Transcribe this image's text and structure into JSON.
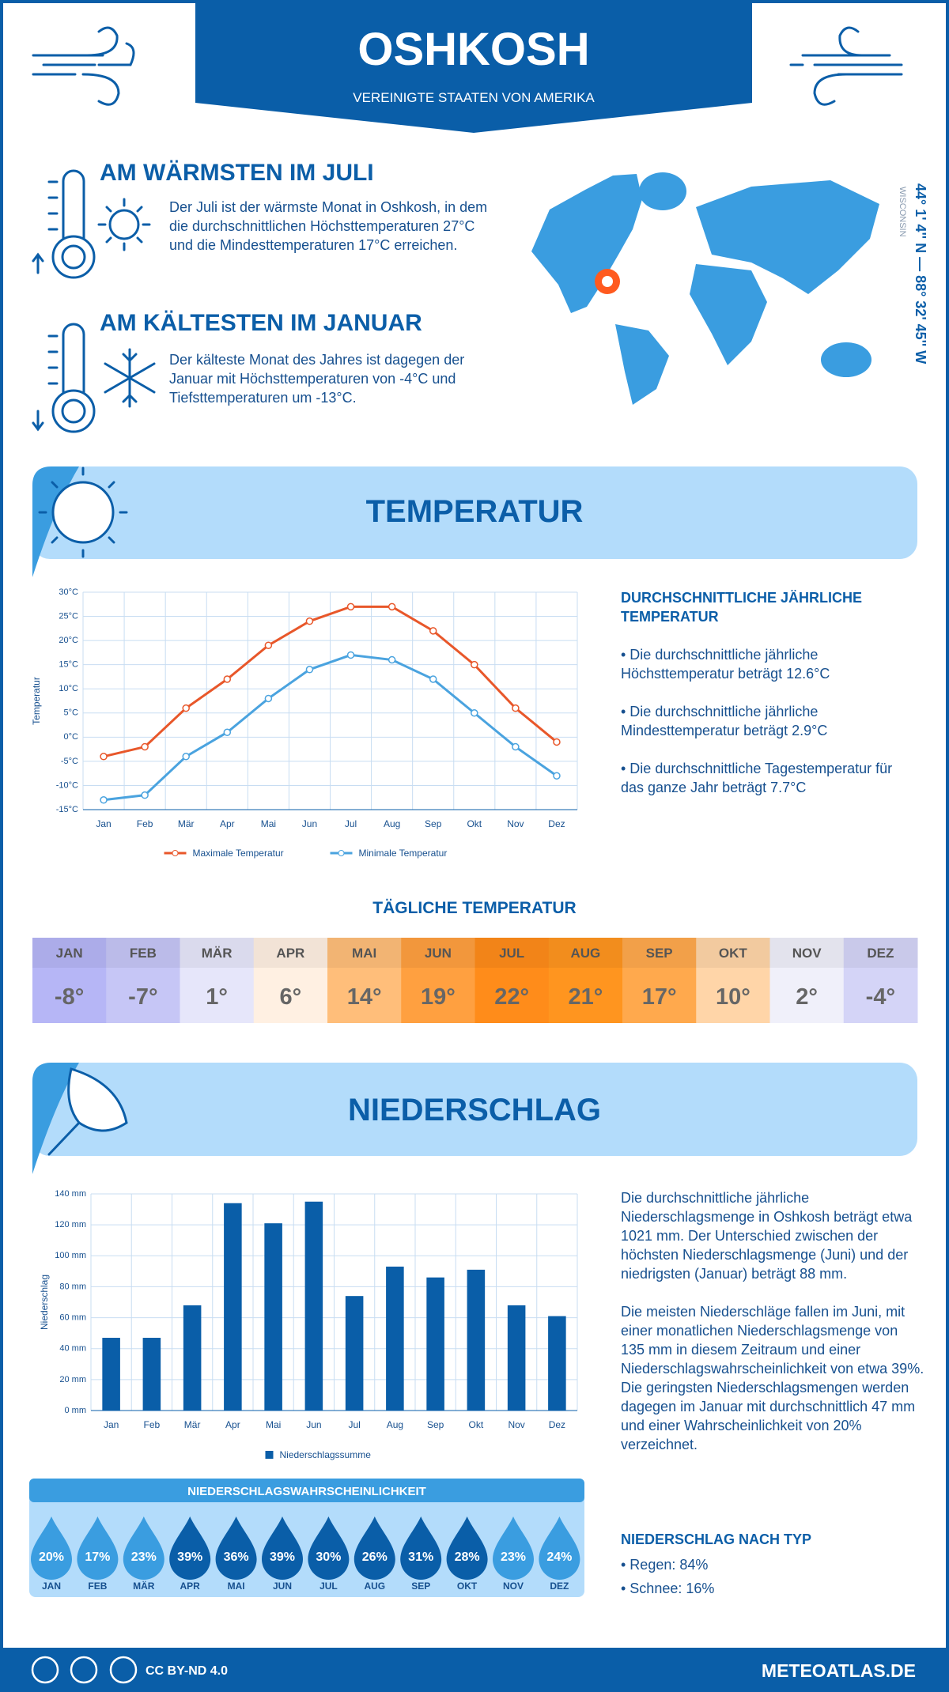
{
  "header": {
    "title": "OSHKOSH",
    "subtitle": "VEREINIGTE STAATEN VON AMERIKA"
  },
  "warmest": {
    "title": "AM WÄRMSTEN IM JULI",
    "text": "Der Juli ist der wärmste Monat in Oshkosh, in dem die durchschnittlichen Höchsttemperaturen 27°C und die Mindesttemperaturen 17°C erreichen."
  },
  "coldest": {
    "title": "AM KÄLTESTEN IM JANUAR",
    "text": "Der kälteste Monat des Jahres ist dagegen der Januar mit Höchsttemperaturen von -4°C und Tiefsttemperaturen um -13°C."
  },
  "location": {
    "coordinates": "44° 1' 4'' N — 88° 32' 45'' W",
    "region": "WISCONSIN"
  },
  "temperature_section": {
    "title": "TEMPERATUR",
    "annual_title": "DURCHSCHNITTLICHE JÄHRLICHE TEMPERATUR",
    "annual_items": [
      "• Die durchschnittliche jährliche Höchsttemperatur beträgt 12.6°C",
      "• Die durchschnittliche jährliche Mindesttemperatur beträgt 2.9°C",
      "• Die durchschnittliche Tagestemperatur für das ganze Jahr beträgt 7.7°C"
    ]
  },
  "daily_temperature": {
    "title": "TÄGLICHE TEMPERATUR",
    "months": [
      "JAN",
      "FEB",
      "MÄR",
      "APR",
      "MAI",
      "JUN",
      "JUL",
      "AUG",
      "SEP",
      "OKT",
      "NOV",
      "DEZ"
    ],
    "values": [
      "-8°",
      "-7°",
      "1°",
      "6°",
      "14°",
      "19°",
      "22°",
      "21°",
      "17°",
      "10°",
      "2°",
      "-4°"
    ],
    "colors": [
      "#b6b6f6",
      "#c6c6f6",
      "#e6e6fa",
      "#fff0e2",
      "#ffbe7a",
      "#ffa040",
      "#ff8c1a",
      "#ff951f",
      "#ffa94d",
      "#ffd5a8",
      "#f0f0fa",
      "#d4d4f7"
    ]
  },
  "chart_data": [
    {
      "type": "line",
      "y_label": "Temperatur",
      "categories": [
        "Jan",
        "Feb",
        "Mär",
        "Apr",
        "Mai",
        "Jun",
        "Jul",
        "Aug",
        "Sep",
        "Okt",
        "Nov",
        "Dez"
      ],
      "series": [
        {
          "name": "Maximale Temperatur",
          "color": "#e8572a",
          "values": [
            -4,
            -2,
            6,
            12,
            19,
            24,
            27,
            27,
            22,
            15,
            6,
            -1
          ]
        },
        {
          "name": "Minimale Temperatur",
          "color": "#4aa3df",
          "values": [
            -13,
            -12,
            -4,
            1,
            8,
            14,
            17,
            16,
            12,
            5,
            -2,
            -8
          ]
        }
      ],
      "ylim": [
        -15,
        30
      ],
      "yticks": [
        {
          "value": -15,
          "label": "-15°C"
        },
        {
          "value": -10,
          "label": "-10°C"
        },
        {
          "value": -5,
          "label": "-5°C"
        },
        {
          "value": 0,
          "label": "0°C"
        },
        {
          "value": 5,
          "label": "5°C"
        },
        {
          "value": 10,
          "label": "10°C"
        },
        {
          "value": 15,
          "label": "15°C"
        },
        {
          "value": 20,
          "label": "20°C"
        },
        {
          "value": 25,
          "label": "25°C"
        },
        {
          "value": 30,
          "label": "30°C"
        }
      ],
      "grid": true,
      "legend": "bottom"
    },
    {
      "type": "bar",
      "y_label": "Niederschlag",
      "categories": [
        "Jan",
        "Feb",
        "Mär",
        "Apr",
        "Mai",
        "Jun",
        "Jul",
        "Aug",
        "Sep",
        "Okt",
        "Nov",
        "Dez"
      ],
      "series": [
        {
          "name": "Niederschlagssumme",
          "color": "#0a5ea8",
          "values": [
            47,
            47,
            68,
            134,
            121,
            135,
            74,
            93,
            86,
            91,
            68,
            61
          ]
        }
      ],
      "ylim": [
        0,
        140
      ],
      "yticks": [
        {
          "value": 0,
          "label": "0 mm"
        },
        {
          "value": 20,
          "label": "20 mm"
        },
        {
          "value": 40,
          "label": "40 mm"
        },
        {
          "value": 60,
          "label": "60 mm"
        },
        {
          "value": 80,
          "label": "80 mm"
        },
        {
          "value": 100,
          "label": "100 mm"
        },
        {
          "value": 120,
          "label": "120 mm"
        },
        {
          "value": 140,
          "label": "140 mm"
        }
      ],
      "grid": true,
      "legend": "bottom"
    }
  ],
  "precipitation_section": {
    "title": "NIEDERSCHLAG",
    "paragraphs": [
      "Die durchschnittliche jährliche Niederschlagsmenge in Oshkosh beträgt etwa 1021 mm. Der Unterschied zwischen der höchsten Niederschlagsmenge (Juni) und der niedrigsten (Januar) beträgt 88 mm.",
      "Die meisten Niederschläge fallen im Juni, mit einer monatlichen Niederschlagsmenge von 135 mm in diesem Zeitraum und einer Niederschlagswahrscheinlichkeit von etwa 39%. Die geringsten Niederschlagsmengen werden dagegen im Januar mit durchschnittlich 47 mm und einer Wahrscheinlichkeit von 20% verzeichnet."
    ],
    "type_title": "NIEDERSCHLAG NACH TYP",
    "type_items": [
      "• Regen: 84%",
      "• Schnee: 16%"
    ]
  },
  "probability": {
    "title": "NIEDERSCHLAGSWAHRSCHEINLICHKEIT",
    "months": [
      "JAN",
      "FEB",
      "MÄR",
      "APR",
      "MAI",
      "JUN",
      "JUL",
      "AUG",
      "SEP",
      "OKT",
      "NOV",
      "DEZ"
    ],
    "values": [
      "20%",
      "17%",
      "23%",
      "39%",
      "36%",
      "39%",
      "30%",
      "26%",
      "31%",
      "28%",
      "23%",
      "24%"
    ],
    "colors": [
      "#3a9de0",
      "#3a9de0",
      "#3a9de0",
      "#0a5ea8",
      "#0a5ea8",
      "#0a5ea8",
      "#0a5ea8",
      "#0a5ea8",
      "#0a5ea8",
      "#0a5ea8",
      "#3a9de0",
      "#3a9de0"
    ]
  },
  "footer": {
    "license": "CC BY-ND 4.0",
    "site": "METEOATLAS.DE"
  }
}
